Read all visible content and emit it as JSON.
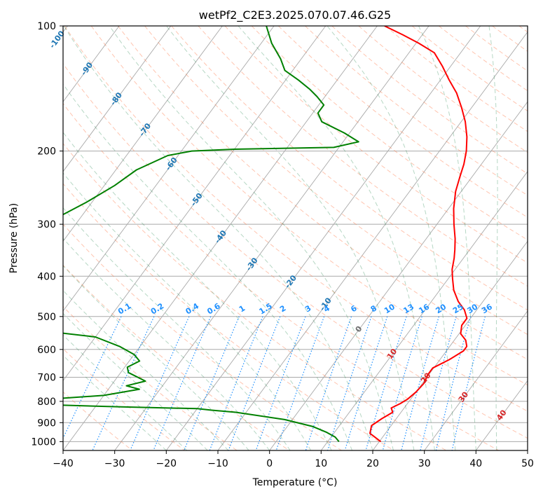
{
  "chart_data": {
    "type": "skew-t",
    "title": "wetPf2_C2E3.2025.070.07.46.G25",
    "xlabel": "Temperature (°C)",
    "ylabel": "Pressure (hPa)",
    "xlim": [
      -40,
      50
    ],
    "ylim": [
      1050,
      100
    ],
    "y_scale": "log",
    "x_ticks": [
      -40,
      -30,
      -20,
      -10,
      0,
      10,
      20,
      30,
      40,
      50
    ],
    "x_tick_labels": [
      "−40",
      "−30",
      "−20",
      "−10",
      "0",
      "10",
      "20",
      "30",
      "40",
      "50"
    ],
    "y_ticks": [
      100,
      200,
      300,
      400,
      500,
      600,
      700,
      800,
      900,
      1000
    ],
    "y_tick_labels": [
      "100",
      "200",
      "300",
      "400",
      "500",
      "600",
      "700",
      "800",
      "900",
      "1000"
    ],
    "grid": true,
    "colors": {
      "temperature": "#ff0000",
      "dewpoint": "#008000",
      "isotherm": "#a9a9a9",
      "dry_adiabat": "#ff7f50",
      "moist_adiabat": "#2e8b57",
      "mixing_ratio": "#1e90ff",
      "isotherm_label": "#1f77b4",
      "adiabat_label": "#d62728",
      "frame": "#000000"
    },
    "series": [
      {
        "name": "",
        "key": "temperature",
        "points": [
          [
            20.3,
            1000
          ],
          [
            17.0,
            955
          ],
          [
            16.2,
            915
          ],
          [
            17.2,
            880
          ],
          [
            18.4,
            850
          ],
          [
            17.5,
            830
          ],
          [
            18.6,
            810
          ],
          [
            19.4,
            790
          ],
          [
            20.0,
            760
          ],
          [
            20.3,
            725
          ],
          [
            19.8,
            690
          ],
          [
            19.8,
            665
          ],
          [
            21.8,
            635
          ],
          [
            23.3,
            605
          ],
          [
            23.3,
            590
          ],
          [
            22.2,
            570
          ],
          [
            20.3,
            550
          ],
          [
            19.3,
            525
          ],
          [
            19.3,
            505
          ],
          [
            17.6,
            482
          ],
          [
            15.2,
            460
          ],
          [
            12.7,
            432
          ],
          [
            10.8,
            405
          ],
          [
            9.4,
            385
          ],
          [
            8.2,
            362
          ],
          [
            7.1,
            345
          ],
          [
            5.6,
            325
          ],
          [
            3.3,
            300
          ],
          [
            1.0,
            275
          ],
          [
            -1.1,
            250
          ],
          [
            -2.4,
            230
          ],
          [
            -3.4,
            215
          ],
          [
            -4.8,
            200
          ],
          [
            -6.7,
            185
          ],
          [
            -9.2,
            170
          ],
          [
            -12.0,
            157
          ],
          [
            -15.0,
            145
          ],
          [
            -18.3,
            135
          ],
          [
            -21.6,
            125
          ],
          [
            -25.1,
            116
          ],
          [
            -29.5,
            110
          ],
          [
            -33.8,
            105
          ],
          [
            -38.6,
            100
          ]
        ]
      },
      {
        "name": "",
        "key": "dewpoint",
        "points": [
          [
            12.2,
            1000
          ],
          [
            10.8,
            975
          ],
          [
            8.5,
            950
          ],
          [
            5.0,
            920
          ],
          [
            -1.5,
            885
          ],
          [
            -12.0,
            850
          ],
          [
            -17.0,
            840
          ],
          [
            -20.0,
            833
          ],
          [
            -35.0,
            825
          ],
          [
            -50.0,
            815
          ],
          [
            -60.0,
            805
          ],
          [
            -50.0,
            790
          ],
          [
            -40.0,
            774
          ],
          [
            -34.0,
            748
          ],
          [
            -37.0,
            734
          ],
          [
            -34.0,
            715
          ],
          [
            -38.5,
            682
          ],
          [
            -39.5,
            662
          ],
          [
            -38.0,
            640
          ],
          [
            -40.0,
            617
          ],
          [
            -44.0,
            590
          ],
          [
            -50.0,
            560
          ],
          [
            -62.0,
            540
          ],
          [
            -72.0,
            520
          ],
          [
            -75.0,
            500
          ],
          [
            -85.0,
            450
          ],
          [
            -82.0,
            400
          ],
          [
            -80.0,
            340
          ],
          [
            -76.0,
            300
          ],
          [
            -71.0,
            265
          ],
          [
            -68.0,
            242
          ],
          [
            -66.0,
            222
          ],
          [
            -62.0,
            205
          ],
          [
            -58.0,
            200
          ],
          [
            -50.0,
            198
          ],
          [
            -31.0,
            196
          ],
          [
            -27.0,
            190
          ],
          [
            -31.0,
            181
          ],
          [
            -37.0,
            170
          ],
          [
            -39.0,
            162
          ],
          [
            -39.0,
            155
          ],
          [
            -41.5,
            148
          ],
          [
            -44.0,
            142
          ],
          [
            -47.5,
            135
          ],
          [
            -51.5,
            128
          ],
          [
            -54.0,
            120
          ],
          [
            -58.0,
            110
          ],
          [
            -61.5,
            100
          ]
        ]
      }
    ],
    "isotherm_labels": [
      "-100",
      "-90",
      "-80",
      "-70",
      "-60",
      "-50",
      "-40",
      "-30",
      "-20",
      "-10",
      "0",
      "10",
      "20",
      "30",
      "40"
    ],
    "mixing_ratio_labels": [
      "0.1",
      "0.2",
      "0.4",
      "0.6",
      "1",
      "1.5",
      "2",
      "3",
      "4",
      "6",
      "8",
      "10",
      "13",
      "16",
      "20",
      "25",
      "30",
      "36"
    ]
  }
}
